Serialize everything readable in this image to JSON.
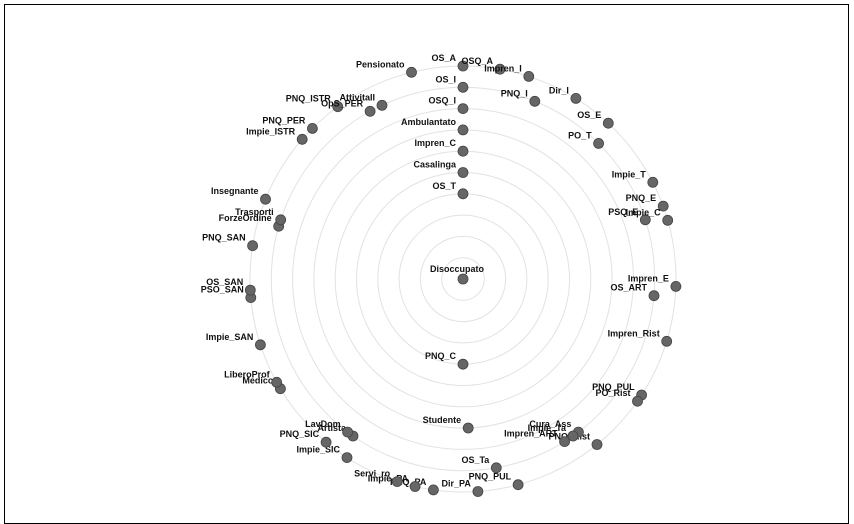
{
  "diagram": {
    "center_label": "Disoccupato",
    "nodes": [
      {
        "label": "OS_A",
        "angle": 0,
        "level": 10
      },
      {
        "label": "OS_I",
        "angle": 0,
        "level": 9
      },
      {
        "label": "OSQ_I",
        "angle": 0,
        "level": 8
      },
      {
        "label": "Ambulantato",
        "angle": 0,
        "level": 7
      },
      {
        "label": "Impren_C",
        "angle": 0,
        "level": 6
      },
      {
        "label": "Casalinga",
        "angle": 0,
        "level": 5
      },
      {
        "label": "OS_T",
        "angle": 0,
        "level": 4
      },
      {
        "label": "OSQ_A",
        "angle": 10,
        "level": 10
      },
      {
        "label": "Impren_I",
        "angle": 18,
        "level": 10
      },
      {
        "label": "PNQ_I",
        "angle": 22,
        "level": 9
      },
      {
        "label": "Dir_I",
        "angle": 32,
        "level": 10
      },
      {
        "label": "OS_E",
        "angle": 43,
        "level": 10
      },
      {
        "label": "PO_T",
        "angle": 45,
        "level": 9
      },
      {
        "label": "Impie_T",
        "angle": 63,
        "level": 10
      },
      {
        "label": "PNQ_E",
        "angle": 70,
        "level": 10
      },
      {
        "label": "PSQ_E",
        "angle": 72,
        "level": 9
      },
      {
        "label": "Impie_C",
        "angle": 74,
        "level": 10
      },
      {
        "label": "Impren_E",
        "angle": 92,
        "level": 10
      },
      {
        "label": "OS_ART",
        "angle": 95,
        "level": 9
      },
      {
        "label": "Impren_Rist",
        "angle": 107,
        "level": 10
      },
      {
        "label": "PNQ_PUL",
        "angle": 123,
        "level": 10
      },
      {
        "label": "PO_Rist",
        "angle": 125,
        "level": 10
      },
      {
        "label": "PNQ_Rist",
        "angle": 141,
        "level": 10
      },
      {
        "label": "Cura_Ass",
        "angle": 143,
        "level": 9
      },
      {
        "label": "Impie_Ta",
        "angle": 145,
        "level": 9
      },
      {
        "label": "Impren_ART",
        "angle": 148,
        "level": 9
      },
      {
        "label": "PNQ_PUL",
        "angle": 165,
        "level": 10
      },
      {
        "label": "OS_Ta",
        "angle": 170,
        "level": 9
      },
      {
        "label": "Studente",
        "angle": 178,
        "level": 7
      },
      {
        "label": "PNQ_C",
        "angle": 180,
        "level": 4
      },
      {
        "label": "Dir_PA",
        "angle": 176,
        "level": 10
      },
      {
        "label": "PNQ_PA",
        "angle": 188,
        "level": 10
      },
      {
        "label": "Impie_PA",
        "angle": 193,
        "level": 10
      },
      {
        "label": "Servi_ro",
        "angle": 198,
        "level": 10
      },
      {
        "label": "Impie_SIC",
        "angle": 213,
        "level": 10
      },
      {
        "label": "Artista",
        "angle": 215,
        "level": 9
      },
      {
        "label": "LavDom",
        "angle": 217,
        "level": 9
      },
      {
        "label": "PNQ_SIC",
        "angle": 220,
        "level": 10
      },
      {
        "label": "Medico",
        "angle": 239,
        "level": 10
      },
      {
        "label": "LiberoProf",
        "angle": 241,
        "level": 10
      },
      {
        "label": "Impie_SAN",
        "angle": 252,
        "level": 10
      },
      {
        "label": "PSO_SAN",
        "angle": 265,
        "level": 10
      },
      {
        "label": "OS_SAN",
        "angle": 267,
        "level": 10
      },
      {
        "label": "PNQ_SAN",
        "angle": 279,
        "level": 10
      },
      {
        "label": "ForzeOrdine",
        "angle": 286,
        "level": 9
      },
      {
        "label": "Trasporti",
        "angle": 288,
        "level": 9
      },
      {
        "label": "Insegnante",
        "angle": 292,
        "level": 10
      },
      {
        "label": "Impie_ISTR",
        "angle": 311,
        "level": 10
      },
      {
        "label": "PNQ_PER",
        "angle": 315,
        "level": 10
      },
      {
        "label": "PNQ_ISTR",
        "angle": 324,
        "level": 10
      },
      {
        "label": "OpS_PER",
        "angle": 331,
        "level": 9
      },
      {
        "label": "AttivitaII",
        "angle": 335,
        "level": 9
      },
      {
        "label": "Pensionato",
        "angle": 346,
        "level": 10
      }
    ]
  }
}
